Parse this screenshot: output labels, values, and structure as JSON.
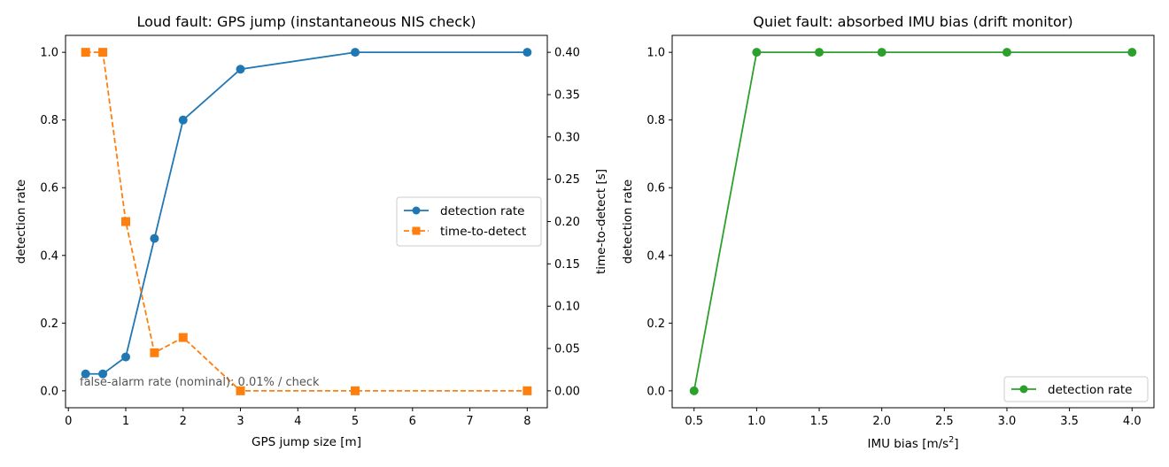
{
  "chart_data": [
    {
      "type": "line",
      "title": "Loud fault: GPS jump (instantaneous NIS check)",
      "xlabel": "GPS jump size [m]",
      "ylabel": "detection rate",
      "ylabel_right": "time-to-detect [s]",
      "xlim": [
        -0.05,
        8.35
      ],
      "ylim": [
        -0.05,
        1.05
      ],
      "ylim_right": [
        -0.02,
        0.42
      ],
      "xticks": [
        0,
        1,
        2,
        3,
        4,
        5,
        6,
        7,
        8
      ],
      "xtick_labels": [
        "0",
        "1",
        "2",
        "3",
        "4",
        "5",
        "6",
        "7",
        "8"
      ],
      "yticks": [
        0.0,
        0.2,
        0.4,
        0.6,
        0.8,
        1.0
      ],
      "ytick_labels": [
        "0.0",
        "0.2",
        "0.4",
        "0.6",
        "0.8",
        "1.0"
      ],
      "yticks_right": [
        0.0,
        0.05,
        0.1,
        0.15,
        0.2,
        0.25,
        0.3,
        0.35,
        0.4
      ],
      "ytick_labels_right": [
        "0.00",
        "0.05",
        "0.10",
        "0.15",
        "0.20",
        "0.25",
        "0.30",
        "0.35",
        "0.40"
      ],
      "grid": false,
      "legend_position": "center-right",
      "annotation": "false-alarm rate (nominal): 0.01% / check",
      "series": [
        {
          "name": "detection rate",
          "axis": "left",
          "color": "#1f77b4",
          "line_style": "solid",
          "marker": "circle",
          "x": [
            0.3,
            0.6,
            1.0,
            1.5,
            2.0,
            3.0,
            5.0,
            8.0
          ],
          "y": [
            0.05,
            0.05,
            0.1,
            0.45,
            0.8,
            0.95,
            1.0,
            1.0
          ]
        },
        {
          "name": "time-to-detect",
          "axis": "right",
          "color": "#ff7f0e",
          "line_style": "dashed",
          "marker": "square",
          "x": [
            0.3,
            0.6,
            1.0,
            1.5,
            2.0,
            3.0,
            5.0,
            8.0
          ],
          "y": [
            0.4,
            0.4,
            0.2,
            0.045,
            0.063,
            0.0,
            0.0,
            0.0
          ]
        }
      ]
    },
    {
      "type": "line",
      "title": "Quiet fault: absorbed IMU bias (drift monitor)",
      "xlabel_base": "IMU bias [m/s",
      "xlabel_sup": "2",
      "xlabel_end": "]",
      "ylabel": "detection rate",
      "xlim": [
        0.325,
        4.175
      ],
      "ylim": [
        -0.05,
        1.05
      ],
      "xticks": [
        0.5,
        1.0,
        1.5,
        2.0,
        2.5,
        3.0,
        3.5,
        4.0
      ],
      "xtick_labels": [
        "0.5",
        "1.0",
        "1.5",
        "2.0",
        "2.5",
        "3.0",
        "3.5",
        "4.0"
      ],
      "yticks": [
        0.0,
        0.2,
        0.4,
        0.6,
        0.8,
        1.0
      ],
      "ytick_labels": [
        "0.0",
        "0.2",
        "0.4",
        "0.6",
        "0.8",
        "1.0"
      ],
      "grid": false,
      "legend_position": "lower-right",
      "series": [
        {
          "name": "detection rate",
          "axis": "left",
          "color": "#2ca02c",
          "line_style": "solid",
          "marker": "circle",
          "x": [
            0.5,
            1.0,
            1.5,
            2.0,
            3.0,
            4.0
          ],
          "y": [
            0.0,
            1.0,
            1.0,
            1.0,
            1.0,
            1.0
          ]
        }
      ]
    }
  ]
}
